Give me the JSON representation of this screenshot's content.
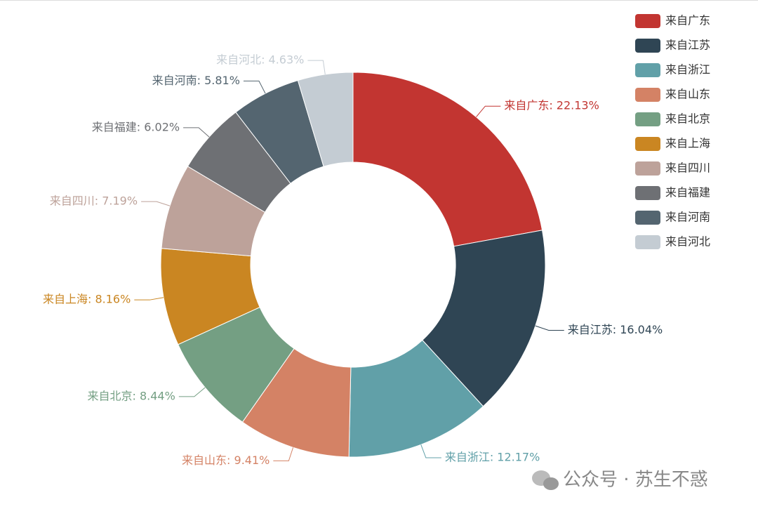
{
  "chart_data": {
    "type": "donut",
    "categories": [
      "来自广东",
      "来自江苏",
      "来自浙江",
      "来自山东",
      "来自北京",
      "来自上海",
      "来自四川",
      "来自福建",
      "来自河南",
      "来自河北"
    ],
    "values": [
      22.13,
      16.04,
      12.17,
      9.41,
      8.44,
      8.16,
      7.19,
      6.02,
      5.81,
      4.63
    ],
    "value_labels": [
      "来自广东: 22.13%",
      "来自江苏: 16.04%",
      "来自浙江: 12.17%",
      "来自山东: 9.41%",
      "来自北京: 8.44%",
      "来自上海: 8.16%",
      "来自四川: 7.19%",
      "来自福建: 6.02%",
      "来自河南: 5.81%",
      "来自河北: 4.63%"
    ],
    "colors": [
      "#c23531",
      "#2f4554",
      "#61a0a8",
      "#d48265",
      "#749f83",
      "#ca8622",
      "#bda29a",
      "#6e7074",
      "#546570",
      "#c4ccd3"
    ],
    "legend": "top-right",
    "watermark": "公众号 · 苏生不惑"
  }
}
